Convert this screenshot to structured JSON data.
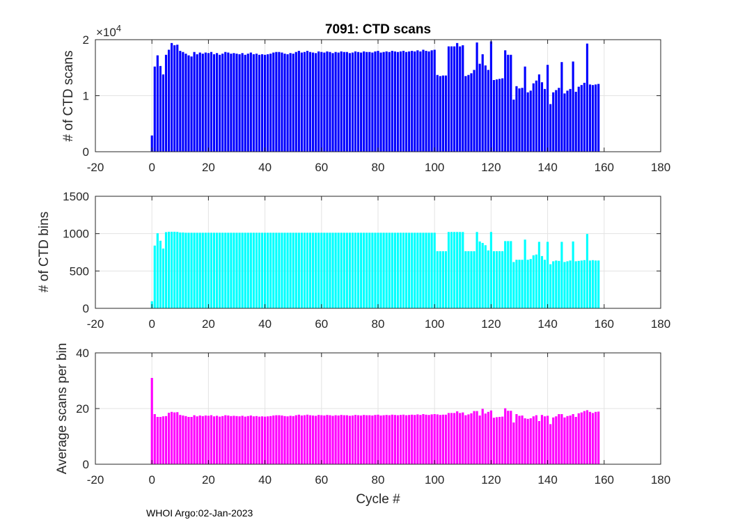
{
  "figure": {
    "footer": "WHOI Argo:02-Jan-2023"
  },
  "chart_data": [
    {
      "type": "bar",
      "title": "7091: CTD scans",
      "xlabel": "",
      "ylabel": "# of CTD scans",
      "multiplier_label": "×10",
      "multiplier_exponent": "4",
      "color": "#0000ff",
      "xlim": [
        -20,
        180
      ],
      "ylim": [
        0,
        2
      ],
      "xticks": [
        "-20",
        "0",
        "20",
        "40",
        "60",
        "80",
        "100",
        "120",
        "140",
        "160",
        "180"
      ],
      "yticks": [
        "0",
        "1",
        "2"
      ],
      "x_start": 0,
      "grid": true,
      "values": [
        0.29,
        1.52,
        1.72,
        1.53,
        1.38,
        1.73,
        1.82,
        1.94,
        1.9,
        1.91,
        1.8,
        1.78,
        1.75,
        1.72,
        1.7,
        1.78,
        1.74,
        1.77,
        1.75,
        1.77,
        1.76,
        1.78,
        1.74,
        1.76,
        1.73,
        1.75,
        1.78,
        1.77,
        1.75,
        1.76,
        1.75,
        1.74,
        1.76,
        1.73,
        1.75,
        1.77,
        1.74,
        1.75,
        1.73,
        1.74,
        1.73,
        1.74,
        1.75,
        1.77,
        1.78,
        1.78,
        1.77,
        1.75,
        1.74,
        1.76,
        1.75,
        1.78,
        1.8,
        1.77,
        1.78,
        1.8,
        1.78,
        1.77,
        1.76,
        1.79,
        1.78,
        1.77,
        1.79,
        1.78,
        1.76,
        1.78,
        1.77,
        1.79,
        1.78,
        1.78,
        1.76,
        1.77,
        1.79,
        1.78,
        1.77,
        1.79,
        1.78,
        1.78,
        1.77,
        1.79,
        1.8,
        1.77,
        1.78,
        1.79,
        1.78,
        1.8,
        1.79,
        1.78,
        1.79,
        1.8,
        1.78,
        1.79,
        1.8,
        1.79,
        1.81,
        1.79,
        1.82,
        1.8,
        1.79,
        1.81,
        1.82,
        1.37,
        1.35,
        1.36,
        1.36,
        1.88,
        1.88,
        1.88,
        1.94,
        1.88,
        1.9,
        1.35,
        1.37,
        1.4,
        1.46,
        1.95,
        1.57,
        1.74,
        1.54,
        1.46,
        1.97,
        1.28,
        1.29,
        1.3,
        1.31,
        1.81,
        1.73,
        1.73,
        0.93,
        1.17,
        1.13,
        1.14,
        1.52,
        1.06,
        1.09,
        1.22,
        1.27,
        1.38,
        1.24,
        1.12,
        1.55,
        0.85,
        1.06,
        1.1,
        1.14,
        1.6,
        1.04,
        1.09,
        1.12,
        1.61,
        1.07,
        1.16,
        1.19,
        1.23,
        1.93,
        1.2,
        1.19,
        1.2,
        1.21
      ],
      "series_name": "CTD scans"
    },
    {
      "type": "bar",
      "title": "",
      "xlabel": "",
      "ylabel": "# of CTD bins",
      "color": "#00ffff",
      "xlim": [
        -20,
        180
      ],
      "ylim": [
        0,
        1500
      ],
      "xticks": [
        "-20",
        "0",
        "20",
        "40",
        "60",
        "80",
        "100",
        "120",
        "140",
        "160",
        "180"
      ],
      "yticks": [
        "0",
        "500",
        "1000",
        "1500"
      ],
      "x_start": 0,
      "grid": true,
      "values": [
        95,
        840,
        1005,
        905,
        800,
        1020,
        1025,
        1025,
        1025,
        1023,
        1015,
        1015,
        1012,
        1012,
        1012,
        1012,
        1012,
        1012,
        1012,
        1012,
        1012,
        1012,
        1012,
        1012,
        1012,
        1012,
        1012,
        1012,
        1012,
        1012,
        1012,
        1012,
        1012,
        1012,
        1012,
        1012,
        1012,
        1012,
        1012,
        1012,
        1012,
        1012,
        1012,
        1012,
        1012,
        1012,
        1012,
        1012,
        1012,
        1012,
        1012,
        1012,
        1012,
        1012,
        1012,
        1012,
        1012,
        1012,
        1012,
        1012,
        1012,
        1012,
        1012,
        1012,
        1012,
        1012,
        1012,
        1012,
        1012,
        1012,
        1012,
        1012,
        1012,
        1012,
        1012,
        1012,
        1012,
        1012,
        1012,
        1012,
        1012,
        1012,
        1012,
        1012,
        1012,
        1012,
        1012,
        1012,
        1012,
        1012,
        1012,
        1012,
        1012,
        1012,
        1012,
        1012,
        1012,
        1012,
        1012,
        1012,
        1012,
        765,
        765,
        765,
        765,
        1022,
        1022,
        1022,
        1022,
        1022,
        1022,
        765,
        765,
        765,
        765,
        1022,
        895,
        875,
        845,
        775,
        1022,
        765,
        765,
        765,
        765,
        900,
        900,
        900,
        620,
        650,
        650,
        650,
        920,
        650,
        660,
        710,
        720,
        890,
        700,
        650,
        890,
        590,
        630,
        640,
        635,
        890,
        620,
        630,
        640,
        895,
        630,
        635,
        640,
        645,
        995,
        640,
        645,
        640,
        640
      ],
      "series_name": "CTD bins"
    },
    {
      "type": "bar",
      "title": "",
      "xlabel": "Cycle #",
      "ylabel": "Average scans per bin",
      "color": "#ff00ff",
      "xlim": [
        -20,
        180
      ],
      "ylim": [
        0,
        40
      ],
      "xticks": [
        "-20",
        "0",
        "20",
        "40",
        "60",
        "80",
        "100",
        "120",
        "140",
        "160",
        "180"
      ],
      "yticks": [
        "0",
        "20",
        "40"
      ],
      "x_start": 0,
      "grid": true,
      "values": [
        31,
        18,
        17,
        17,
        17.2,
        17.3,
        18.5,
        18.8,
        18.6,
        18.7,
        17.7,
        17.5,
        17.3,
        17,
        17,
        17.6,
        17.2,
        17.5,
        17.3,
        17.5,
        17.4,
        17.6,
        17.2,
        17.4,
        17.1,
        17.3,
        17.6,
        17.5,
        17.3,
        17.4,
        17.3,
        17.2,
        17.4,
        17.1,
        17.3,
        17.5,
        17.2,
        17.3,
        17.1,
        17.2,
        17.1,
        17.2,
        17.3,
        17.5,
        17.6,
        17.6,
        17.5,
        17.3,
        17.2,
        17.4,
        17.3,
        17.6,
        17.8,
        17.5,
        17.6,
        17.8,
        17.6,
        17.5,
        17.4,
        17.7,
        17.6,
        17.5,
        17.7,
        17.6,
        17.4,
        17.6,
        17.5,
        17.7,
        17.6,
        17.6,
        17.4,
        17.5,
        17.7,
        17.6,
        17.5,
        17.7,
        17.6,
        17.6,
        17.5,
        17.7,
        17.8,
        17.5,
        17.6,
        17.7,
        17.6,
        17.8,
        17.7,
        17.6,
        17.7,
        17.8,
        17.6,
        17.7,
        17.8,
        17.7,
        17.9,
        17.7,
        18,
        17.8,
        17.7,
        17.9,
        18,
        17.9,
        17.7,
        17.8,
        17.8,
        18.4,
        18.4,
        18.4,
        19,
        18.4,
        18.6,
        17.6,
        17.9,
        18.3,
        19.1,
        19.1,
        17.5,
        19.9,
        18.2,
        18.8,
        19.3,
        16.7,
        16.9,
        17,
        17.1,
        20.1,
        19.2,
        19.2,
        15,
        18,
        17.4,
        17.5,
        16.5,
        16.3,
        16.5,
        17.2,
        17.6,
        15.5,
        17.7,
        17.2,
        17.4,
        14.4,
        16.8,
        17.2,
        18,
        18,
        16.8,
        17.3,
        17.5,
        18,
        17,
        18.3,
        18.6,
        19.1,
        19.4,
        18.8,
        18.4,
        18.8,
        18.9
      ],
      "series_name": "scans per bin"
    }
  ]
}
